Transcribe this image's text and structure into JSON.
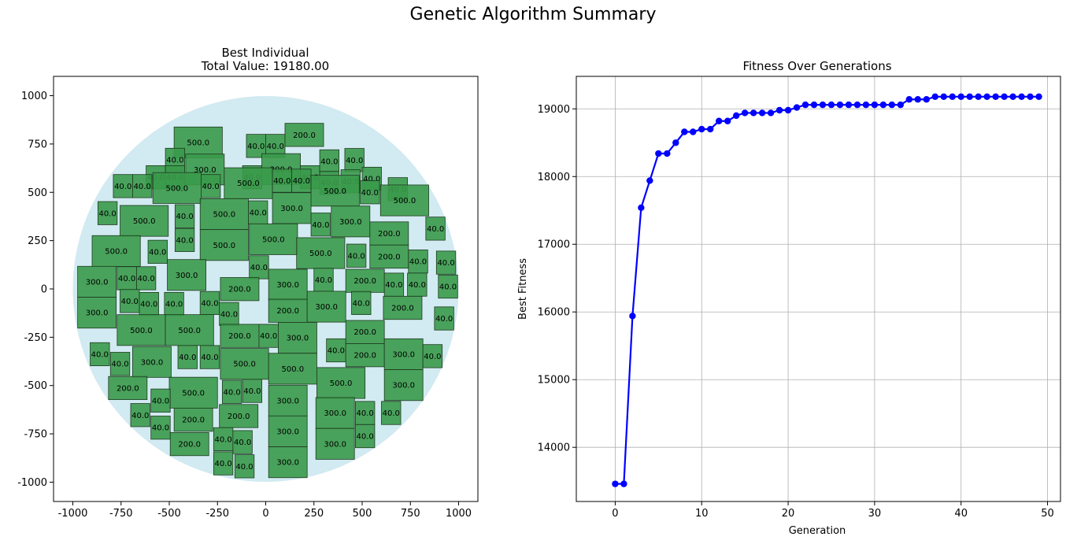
{
  "figure": {
    "suptitle": "Genetic Algorithm Summary"
  },
  "chart_data": [
    {
      "type": "scatter",
      "title_line1": "Best Individual",
      "title_line2": "Total Value: 19180.00",
      "xlabel": "",
      "ylabel": "",
      "xlim": [
        -1100,
        1100
      ],
      "ylim": [
        -1100,
        1100
      ],
      "xticks": [
        -1000,
        -750,
        -500,
        -250,
        0,
        250,
        500,
        750,
        1000
      ],
      "yticks": [
        -1000,
        -750,
        -500,
        -250,
        0,
        250,
        500,
        750,
        1000
      ],
      "grid": false,
      "circle": {
        "cx": 0,
        "cy": 0,
        "r": 1000,
        "color": "#add8e6"
      },
      "item_color": "#3a9a4a",
      "items": [
        {
          "x": -350,
          "y": 758,
          "w": 250,
          "h": 160,
          "v": "500.0"
        },
        {
          "x": -50,
          "y": 740,
          "w": 100,
          "h": 120,
          "v": "40.0"
        },
        {
          "x": 50,
          "y": 740,
          "w": 100,
          "h": 120,
          "v": "40.0"
        },
        {
          "x": 200,
          "y": 797,
          "w": 200,
          "h": 120,
          "v": "200.0"
        },
        {
          "x": -470,
          "y": 668,
          "w": 100,
          "h": 120,
          "v": "40.0"
        },
        {
          "x": -570,
          "y": 578,
          "w": 100,
          "h": 120,
          "v": "40.0"
        },
        {
          "x": -470,
          "y": 578,
          "w": 100,
          "h": 120,
          "v": "40.0"
        },
        {
          "x": -315,
          "y": 618,
          "w": 200,
          "h": 160,
          "v": "300.0"
        },
        {
          "x": -70,
          "y": 578,
          "w": 100,
          "h": 120,
          "v": "40.0"
        },
        {
          "x": 80,
          "y": 620,
          "w": 200,
          "h": 160,
          "v": "300.0"
        },
        {
          "x": 230,
          "y": 578,
          "w": 100,
          "h": 120,
          "v": "40.0"
        },
        {
          "x": 330,
          "y": 660,
          "w": 100,
          "h": 120,
          "v": "40.0"
        },
        {
          "x": 460,
          "y": 667,
          "w": 100,
          "h": 120,
          "v": "40.0"
        },
        {
          "x": 440,
          "y": 557,
          "w": 100,
          "h": 120,
          "v": "40.0"
        },
        {
          "x": 550,
          "y": 570,
          "w": 100,
          "h": 120,
          "v": "40.0"
        },
        {
          "x": 330,
          "y": 549,
          "w": 100,
          "h": 120,
          "v": "40.0"
        },
        {
          "x": 685,
          "y": 516,
          "w": 100,
          "h": 120,
          "v": "40.0"
        },
        {
          "x": -740,
          "y": 532,
          "w": 100,
          "h": 120,
          "v": "40.0"
        },
        {
          "x": -640,
          "y": 532,
          "w": 100,
          "h": 120,
          "v": "40.0"
        },
        {
          "x": -460,
          "y": 522,
          "w": 250,
          "h": 160,
          "v": "500.0"
        },
        {
          "x": -285,
          "y": 532,
          "w": 100,
          "h": 120,
          "v": "40.0"
        },
        {
          "x": -90,
          "y": 547,
          "w": 250,
          "h": 160,
          "v": "500.0"
        },
        {
          "x": 85,
          "y": 560,
          "w": 100,
          "h": 120,
          "v": "40.0"
        },
        {
          "x": 185,
          "y": 560,
          "w": 100,
          "h": 120,
          "v": "40.0"
        },
        {
          "x": 360,
          "y": 508,
          "w": 250,
          "h": 160,
          "v": "500.0"
        },
        {
          "x": 540,
          "y": 500,
          "w": 100,
          "h": 120,
          "v": "40.0"
        },
        {
          "x": 720,
          "y": 458,
          "w": 250,
          "h": 160,
          "v": "500.0"
        },
        {
          "x": -820,
          "y": 392,
          "w": 100,
          "h": 120,
          "v": "40.0"
        },
        {
          "x": -630,
          "y": 352,
          "w": 250,
          "h": 160,
          "v": "500.0"
        },
        {
          "x": -420,
          "y": 376,
          "w": 100,
          "h": 120,
          "v": "40.0"
        },
        {
          "x": -215,
          "y": 387,
          "w": 250,
          "h": 160,
          "v": "500.0"
        },
        {
          "x": -40,
          "y": 396,
          "w": 100,
          "h": 120,
          "v": "40.0"
        },
        {
          "x": 135,
          "y": 418,
          "w": 200,
          "h": 160,
          "v": "300.0"
        },
        {
          "x": 285,
          "y": 333,
          "w": 100,
          "h": 120,
          "v": "40.0"
        },
        {
          "x": 440,
          "y": 349,
          "w": 200,
          "h": 160,
          "v": "300.0"
        },
        {
          "x": 640,
          "y": 287,
          "w": 200,
          "h": 120,
          "v": "200.0"
        },
        {
          "x": 880,
          "y": 312,
          "w": 100,
          "h": 120,
          "v": "40.0"
        },
        {
          "x": -420,
          "y": 253,
          "w": 100,
          "h": 120,
          "v": "40.0"
        },
        {
          "x": -215,
          "y": 227,
          "w": 250,
          "h": 160,
          "v": "500.0"
        },
        {
          "x": 40,
          "y": 257,
          "w": 250,
          "h": 160,
          "v": "500.0"
        },
        {
          "x": -775,
          "y": 196,
          "w": 250,
          "h": 160,
          "v": "500.0"
        },
        {
          "x": -560,
          "y": 192,
          "w": 100,
          "h": 120,
          "v": "40.0"
        },
        {
          "x": 285,
          "y": 185,
          "w": 250,
          "h": 160,
          "v": "500.0"
        },
        {
          "x": 470,
          "y": 172,
          "w": 100,
          "h": 120,
          "v": "40.0"
        },
        {
          "x": 640,
          "y": 167,
          "w": 200,
          "h": 120,
          "v": "200.0"
        },
        {
          "x": 790,
          "y": 142,
          "w": 100,
          "h": 120,
          "v": "40.0"
        },
        {
          "x": 935,
          "y": 136,
          "w": 100,
          "h": 120,
          "v": "40.0"
        },
        {
          "x": -35,
          "y": 112,
          "w": 100,
          "h": 120,
          "v": "40.0"
        },
        {
          "x": -410,
          "y": 72,
          "w": 200,
          "h": 160,
          "v": "300.0"
        },
        {
          "x": -620,
          "y": 55,
          "w": 100,
          "h": 120,
          "v": "40.0"
        },
        {
          "x": -720,
          "y": 55,
          "w": 100,
          "h": 120,
          "v": "40.0"
        },
        {
          "x": -875,
          "y": 37,
          "w": 200,
          "h": 160,
          "v": "300.0"
        },
        {
          "x": -135,
          "y": -1,
          "w": 200,
          "h": 120,
          "v": "200.0"
        },
        {
          "x": 115,
          "y": 22,
          "w": 200,
          "h": 160,
          "v": "300.0"
        },
        {
          "x": 300,
          "y": 47,
          "w": 100,
          "h": 120,
          "v": "40.0"
        },
        {
          "x": 515,
          "y": 42,
          "w": 200,
          "h": 120,
          "v": "200.0"
        },
        {
          "x": 665,
          "y": 22,
          "w": 100,
          "h": 120,
          "v": "40.0"
        },
        {
          "x": 785,
          "y": 22,
          "w": 100,
          "h": 120,
          "v": "40.0"
        },
        {
          "x": 945,
          "y": 12,
          "w": 100,
          "h": 120,
          "v": "40.0"
        },
        {
          "x": -705,
          "y": -63,
          "w": 100,
          "h": 120,
          "v": "40.0"
        },
        {
          "x": -605,
          "y": -78,
          "w": 100,
          "h": 120,
          "v": "40.0"
        },
        {
          "x": -475,
          "y": -78,
          "w": 100,
          "h": 120,
          "v": "40.0"
        },
        {
          "x": -290,
          "y": -73,
          "w": 100,
          "h": 120,
          "v": "40.0"
        },
        {
          "x": -190,
          "y": -130,
          "w": 100,
          "h": 120,
          "v": "40.0"
        },
        {
          "x": -875,
          "y": -123,
          "w": 200,
          "h": 160,
          "v": "300.0"
        },
        {
          "x": 115,
          "y": -113,
          "w": 200,
          "h": 120,
          "v": "200.0"
        },
        {
          "x": 315,
          "y": -92,
          "w": 200,
          "h": 160,
          "v": "300.0"
        },
        {
          "x": 495,
          "y": -73,
          "w": 100,
          "h": 120,
          "v": "40.0"
        },
        {
          "x": 710,
          "y": -98,
          "w": 200,
          "h": 120,
          "v": "200.0"
        },
        {
          "x": 925,
          "y": -153,
          "w": 100,
          "h": 120,
          "v": "40.0"
        },
        {
          "x": -645,
          "y": -213,
          "w": 250,
          "h": 160,
          "v": "500.0"
        },
        {
          "x": -395,
          "y": -213,
          "w": 250,
          "h": 160,
          "v": "500.0"
        },
        {
          "x": -135,
          "y": -243,
          "w": 200,
          "h": 120,
          "v": "200.0"
        },
        {
          "x": 15,
          "y": -243,
          "w": 100,
          "h": 120,
          "v": "40.0"
        },
        {
          "x": 165,
          "y": -253,
          "w": 200,
          "h": 160,
          "v": "300.0"
        },
        {
          "x": 515,
          "y": -223,
          "w": 200,
          "h": 120,
          "v": "200.0"
        },
        {
          "x": -860,
          "y": -338,
          "w": 100,
          "h": 120,
          "v": "40.0"
        },
        {
          "x": -755,
          "y": -388,
          "w": 100,
          "h": 120,
          "v": "40.0"
        },
        {
          "x": -590,
          "y": -378,
          "w": 200,
          "h": 160,
          "v": "300.0"
        },
        {
          "x": -405,
          "y": -353,
          "w": 100,
          "h": 120,
          "v": "40.0"
        },
        {
          "x": -290,
          "y": -353,
          "w": 100,
          "h": 120,
          "v": "40.0"
        },
        {
          "x": -110,
          "y": -388,
          "w": 250,
          "h": 160,
          "v": "500.0"
        },
        {
          "x": 140,
          "y": -413,
          "w": 250,
          "h": 160,
          "v": "500.0"
        },
        {
          "x": 365,
          "y": -318,
          "w": 100,
          "h": 120,
          "v": "40.0"
        },
        {
          "x": 515,
          "y": -343,
          "w": 200,
          "h": 120,
          "v": "200.0"
        },
        {
          "x": 715,
          "y": -338,
          "w": 200,
          "h": 160,
          "v": "300.0"
        },
        {
          "x": 865,
          "y": -348,
          "w": 100,
          "h": 120,
          "v": "40.0"
        },
        {
          "x": -715,
          "y": -513,
          "w": 200,
          "h": 120,
          "v": "200.0"
        },
        {
          "x": -375,
          "y": -537,
          "w": 250,
          "h": 160,
          "v": "500.0"
        },
        {
          "x": -175,
          "y": -533,
          "w": 100,
          "h": 120,
          "v": "40.0"
        },
        {
          "x": -70,
          "y": -528,
          "w": 100,
          "h": 120,
          "v": "40.0"
        },
        {
          "x": 390,
          "y": -487,
          "w": 250,
          "h": 160,
          "v": "500.0"
        },
        {
          "x": 715,
          "y": -498,
          "w": 200,
          "h": 160,
          "v": "300.0"
        },
        {
          "x": -545,
          "y": -578,
          "w": 100,
          "h": 120,
          "v": "40.0"
        },
        {
          "x": -650,
          "y": -653,
          "w": 100,
          "h": 120,
          "v": "40.0"
        },
        {
          "x": -545,
          "y": -718,
          "w": 100,
          "h": 120,
          "v": "40.0"
        },
        {
          "x": -375,
          "y": -677,
          "w": 200,
          "h": 120,
          "v": "200.0"
        },
        {
          "x": -140,
          "y": -658,
          "w": 200,
          "h": 120,
          "v": "200.0"
        },
        {
          "x": 115,
          "y": -578,
          "w": 200,
          "h": 160,
          "v": "300.0"
        },
        {
          "x": 360,
          "y": -642,
          "w": 200,
          "h": 160,
          "v": "300.0"
        },
        {
          "x": 515,
          "y": -642,
          "w": 100,
          "h": 120,
          "v": "40.0"
        },
        {
          "x": 650,
          "y": -642,
          "w": 100,
          "h": 120,
          "v": "40.0"
        },
        {
          "x": -395,
          "y": -803,
          "w": 200,
          "h": 120,
          "v": "200.0"
        },
        {
          "x": -220,
          "y": -778,
          "w": 100,
          "h": 120,
          "v": "40.0"
        },
        {
          "x": -120,
          "y": -793,
          "w": 100,
          "h": 120,
          "v": "40.0"
        },
        {
          "x": 115,
          "y": -737,
          "w": 200,
          "h": 160,
          "v": "300.0"
        },
        {
          "x": 360,
          "y": -802,
          "w": 200,
          "h": 160,
          "v": "300.0"
        },
        {
          "x": 515,
          "y": -762,
          "w": 100,
          "h": 120,
          "v": "40.0"
        },
        {
          "x": -220,
          "y": -903,
          "w": 100,
          "h": 120,
          "v": "40.0"
        },
        {
          "x": -110,
          "y": -918,
          "w": 100,
          "h": 120,
          "v": "40.0"
        },
        {
          "x": 115,
          "y": -897,
          "w": 200,
          "h": 160,
          "v": "300.0"
        }
      ]
    },
    {
      "type": "line",
      "title": "Fitness Over Generations",
      "xlabel": "Generation",
      "ylabel": "Best Fitness",
      "xlim": [
        -4.5,
        51.5
      ],
      "ylim": [
        13200,
        19480
      ],
      "xticks": [
        0,
        10,
        20,
        30,
        40,
        50
      ],
      "yticks": [
        14000,
        15000,
        16000,
        17000,
        18000,
        19000
      ],
      "grid": true,
      "color": "#0000ff",
      "x": [
        0,
        1,
        2,
        3,
        4,
        5,
        6,
        7,
        8,
        9,
        10,
        11,
        12,
        13,
        14,
        15,
        16,
        17,
        18,
        19,
        20,
        21,
        22,
        23,
        24,
        25,
        26,
        27,
        28,
        29,
        30,
        31,
        32,
        33,
        34,
        35,
        36,
        37,
        38,
        39,
        40,
        41,
        42,
        43,
        44,
        45,
        46,
        47,
        48,
        49
      ],
      "y": [
        13460,
        13460,
        15940,
        17540,
        17940,
        18340,
        18340,
        18500,
        18660,
        18660,
        18700,
        18700,
        18820,
        18820,
        18900,
        18940,
        18940,
        18940,
        18940,
        18980,
        18980,
        19020,
        19060,
        19060,
        19060,
        19060,
        19060,
        19060,
        19060,
        19060,
        19060,
        19060,
        19060,
        19060,
        19140,
        19140,
        19140,
        19180,
        19180,
        19180,
        19180,
        19180,
        19180,
        19180,
        19180,
        19180,
        19180,
        19180,
        19180,
        19180
      ]
    }
  ]
}
